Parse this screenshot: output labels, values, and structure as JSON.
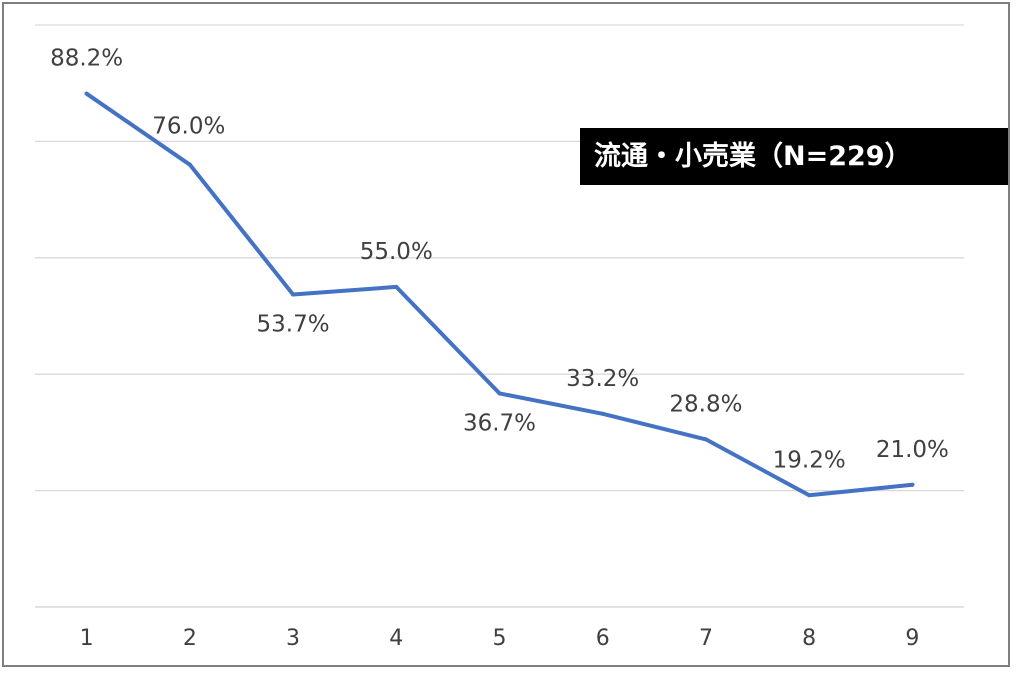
{
  "chart_data": {
    "type": "line",
    "title": "流通・小売業（N=229）",
    "x": [
      "1",
      "2",
      "3",
      "4",
      "5",
      "6",
      "7",
      "8",
      "9"
    ],
    "series": [
      {
        "values": [
          88.2,
          76.0,
          53.7,
          55.0,
          36.7,
          33.2,
          28.8,
          19.2,
          21.0
        ],
        "labels": [
          "88.2%",
          "76.0%",
          "53.7%",
          "55.0%",
          "36.7%",
          "33.2%",
          "28.8%",
          "19.2%",
          "21.0%"
        ],
        "color": "#4472c4"
      }
    ],
    "ylim": [
      0,
      100
    ],
    "grid": true,
    "gridline_color": "#d9d9d9",
    "axis_color": "#d9d9d9",
    "xlabel": "",
    "ylabel": ""
  }
}
